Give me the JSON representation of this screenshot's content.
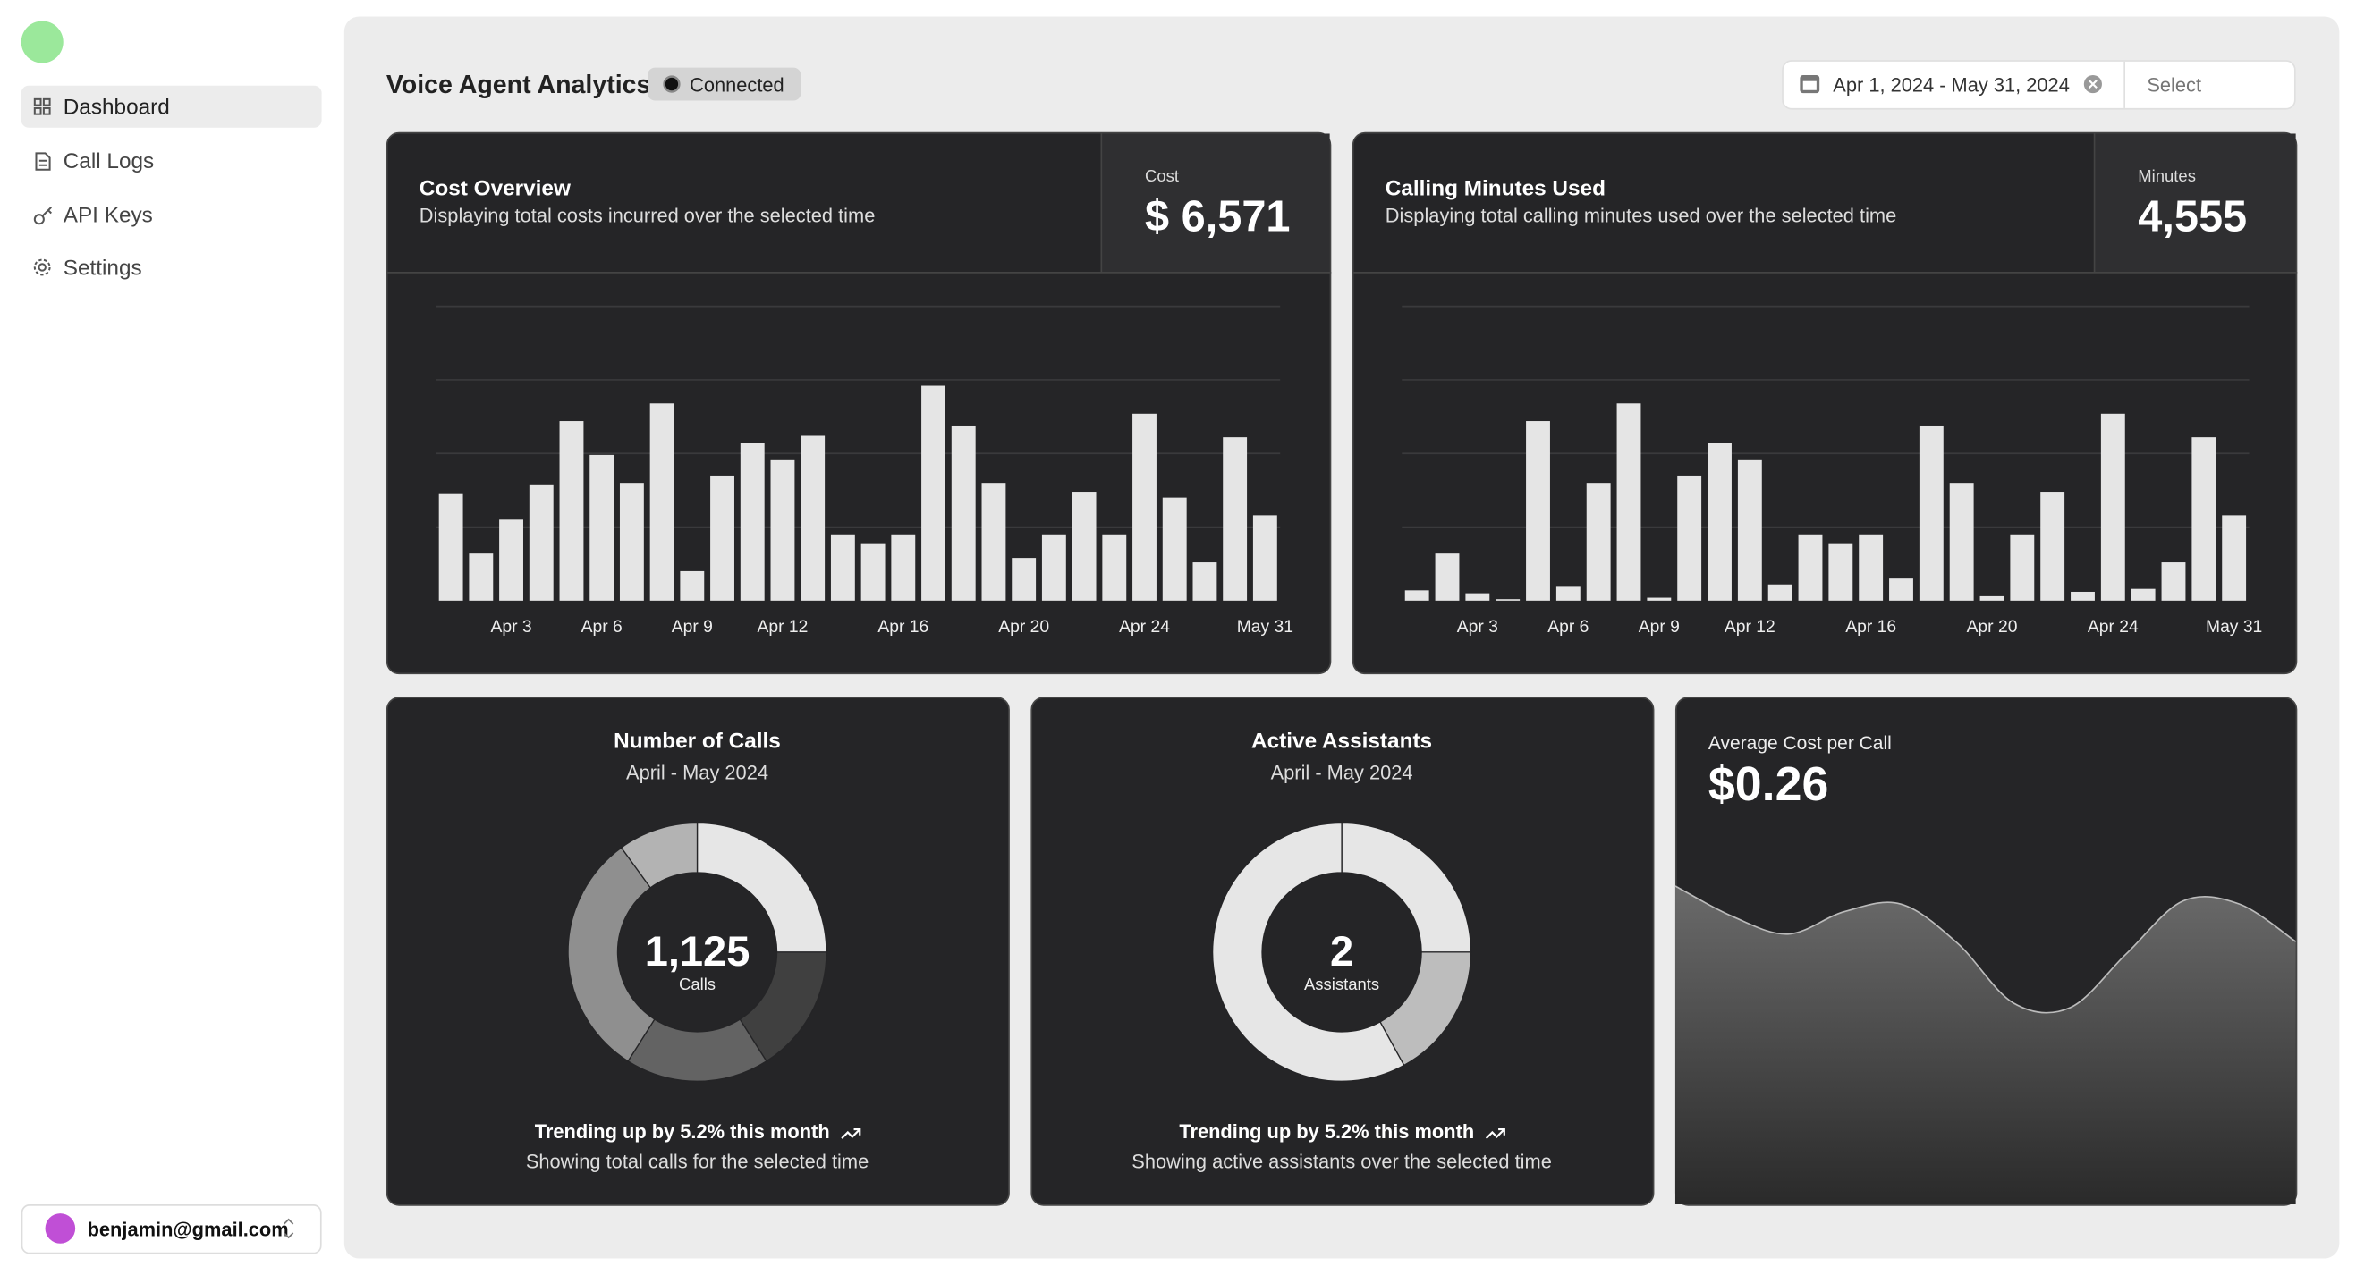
{
  "sidebar": {
    "nav": [
      "Dashboard",
      "Call Logs",
      "API Keys",
      "Settings"
    ],
    "user": "benjamin@gmail.com"
  },
  "header": {
    "title": "Voice Agent Analytics",
    "status": "Connected",
    "date_range": "Apr 1, 2024 - May 31, 2024",
    "select": "Select"
  },
  "cost_card": {
    "title": "Cost Overview",
    "description": "Displaying total costs incurred over the selected time",
    "stat_label": "Cost",
    "stat_value": "$ 6,571",
    "chart": {
      "type": "bar",
      "color": "#e5e5e5",
      "ylim": [
        0,
        200
      ],
      "categories": [
        null,
        null,
        "Apr 3",
        null,
        null,
        "Apr 6",
        null,
        null,
        "Apr 9",
        null,
        null,
        "Apr 12",
        null,
        null,
        null,
        "Apr 16",
        null,
        null,
        null,
        "Apr 20",
        null,
        null,
        null,
        "Apr 24",
        null,
        null,
        null,
        "May 31"
      ],
      "values": [
        73,
        32,
        55,
        79,
        122,
        99,
        80,
        134,
        20,
        85,
        107,
        96,
        112,
        45,
        39,
        45,
        146,
        119,
        80,
        29,
        45,
        74,
        45,
        127,
        70,
        26,
        111,
        58
      ]
    }
  },
  "minutes_card": {
    "title": "Calling Minutes Used",
    "description": "Displaying total calling minutes used over the selected time",
    "stat_label": "Minutes",
    "stat_value": "4,555",
    "chart": {
      "type": "bar",
      "color": "#e5e5e5",
      "ylim": [
        0,
        200
      ],
      "categories": [
        null,
        null,
        "Apr 3",
        null,
        null,
        "Apr 6",
        null,
        null,
        "Apr 9",
        null,
        null,
        "Apr 12",
        null,
        null,
        null,
        "Apr 16",
        null,
        null,
        null,
        "Apr 20",
        null,
        null,
        null,
        "Apr 24",
        null,
        null,
        null,
        "May 31"
      ],
      "values": [
        7,
        32,
        5,
        1,
        122,
        10,
        80,
        134,
        2,
        85,
        107,
        96,
        11,
        45,
        39,
        45,
        15,
        119,
        80,
        3,
        45,
        74,
        6,
        127,
        8,
        26,
        111,
        58
      ]
    }
  },
  "calls_card": {
    "title": "Number of Calls",
    "subtitle": "April - May 2024",
    "center_value": "1,125",
    "center_label": "Calls",
    "trend": "Trending up by 5.2% this month",
    "footer": "Showing total calls for the selected time",
    "chart": {
      "type": "pie",
      "values": [
        25,
        16,
        18,
        31,
        10
      ],
      "colors": [
        "#e6e6e6",
        "#404040",
        "#636363",
        "#8f8f8f",
        "#b3b3b3"
      ]
    }
  },
  "assistants_card": {
    "title": "Active Assistants",
    "subtitle": "April - May 2024",
    "center_value": "2",
    "center_label": "Assistants",
    "trend": "Trending up by 5.2% this month",
    "footer": "Showing active assistants over the selected time",
    "chart": {
      "type": "pie",
      "values": [
        25,
        17,
        58
      ],
      "colors": [
        "#e6e6e6",
        "#bdbdbd",
        "#e6e6e6"
      ]
    }
  },
  "avg_cost_card": {
    "label": "Average Cost per Call",
    "value": "$0.26",
    "chart": {
      "type": "area",
      "ylim": [
        0,
        300
      ],
      "values": [
        212,
        192,
        180,
        195,
        200,
        174,
        134,
        131,
        167,
        202,
        200,
        175
      ]
    }
  }
}
